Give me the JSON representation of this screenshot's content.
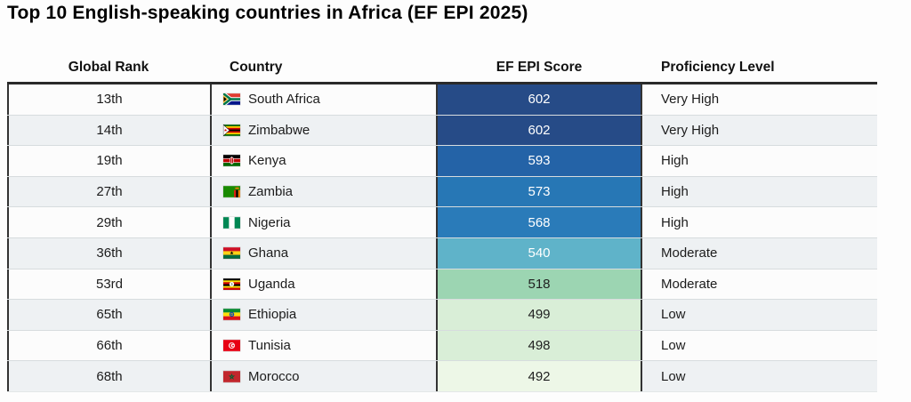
{
  "page": {
    "title": "Top 10 English-speaking countries in Africa (EF EPI 2025)"
  },
  "table": {
    "columns": [
      "Global Rank",
      "Country",
      "EF EPI Score",
      "Proficiency Level"
    ],
    "rows": [
      {
        "rank": "13th",
        "country": "South Africa",
        "flag": "south-africa",
        "score": "602",
        "level": "Very High",
        "score_bg": "#264b87",
        "score_color": "#ffffff"
      },
      {
        "rank": "14th",
        "country": "Zimbabwe",
        "flag": "zimbabwe",
        "score": "602",
        "level": "Very High",
        "score_bg": "#264b87",
        "score_color": "#ffffff"
      },
      {
        "rank": "19th",
        "country": "Kenya",
        "flag": "kenya",
        "score": "593",
        "level": "High",
        "score_bg": "#2463a7",
        "score_color": "#ffffff"
      },
      {
        "rank": "27th",
        "country": "Zambia",
        "flag": "zambia",
        "score": "573",
        "level": "High",
        "score_bg": "#2777b5",
        "score_color": "#ffffff"
      },
      {
        "rank": "29th",
        "country": "Nigeria",
        "flag": "nigeria",
        "score": "568",
        "level": "High",
        "score_bg": "#2a7bb9",
        "score_color": "#ffffff"
      },
      {
        "rank": "36th",
        "country": "Ghana",
        "flag": "ghana",
        "score": "540",
        "level": "Moderate",
        "score_bg": "#5fb3c9",
        "score_color": "#ffffff"
      },
      {
        "rank": "53rd",
        "country": "Uganda",
        "flag": "uganda",
        "score": "518",
        "level": "Moderate",
        "score_bg": "#9cd5b2",
        "score_color": "#1f1f1f"
      },
      {
        "rank": "65th",
        "country": "Ethiopia",
        "flag": "ethiopia",
        "score": "499",
        "level": "Low",
        "score_bg": "#d9eed7",
        "score_color": "#1f1f1f"
      },
      {
        "rank": "66th",
        "country": "Tunisia",
        "flag": "tunisia",
        "score": "498",
        "level": "Low",
        "score_bg": "#d9eed7",
        "score_color": "#1f1f1f"
      },
      {
        "rank": "68th",
        "country": "Morocco",
        "flag": "morocco",
        "score": "492",
        "level": "Low",
        "score_bg": "#edf7e7",
        "score_color": "#1f1f1f"
      }
    ]
  },
  "colors": {
    "score_scale_high": "#264b87",
    "score_scale_low": "#edf7e7",
    "row_alt": "#eef1f3",
    "table_border": "#2a2a2a"
  },
  "chart_data": {
    "type": "table",
    "title": "Top 10 English-speaking countries in Africa (EF EPI 2025)",
    "columns": [
      "Global Rank",
      "Country",
      "EF EPI Score",
      "Proficiency Level"
    ],
    "rows": [
      [
        "13th",
        "South Africa",
        602,
        "Very High"
      ],
      [
        "14th",
        "Zimbabwe",
        602,
        "Very High"
      ],
      [
        "19th",
        "Kenya",
        593,
        "High"
      ],
      [
        "27th",
        "Zambia",
        573,
        "High"
      ],
      [
        "29th",
        "Nigeria",
        568,
        "High"
      ],
      [
        "36th",
        "Ghana",
        540,
        "Moderate"
      ],
      [
        "53rd",
        "Uganda",
        518,
        "Moderate"
      ],
      [
        "65th",
        "Ethiopia",
        499,
        "Low"
      ],
      [
        "66th",
        "Tunisia",
        498,
        "Low"
      ],
      [
        "68th",
        "Morocco",
        492,
        "Low"
      ]
    ],
    "notes": "EF EPI Score column uses a color scale from dark navy blue (highest, 602) through mid blue and teal to pale green (lowest, 492)"
  }
}
